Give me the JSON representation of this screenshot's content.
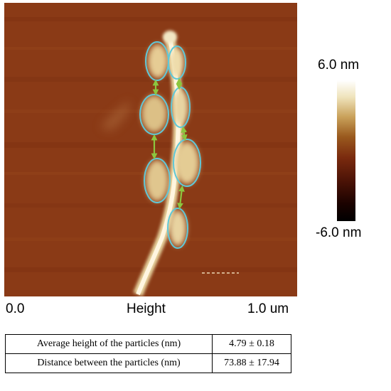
{
  "image": {
    "colorbar": {
      "max_label": "6.0 nm",
      "min_label": "-6.0 nm",
      "colors": [
        "#ffffff",
        "#efe3bb",
        "#c9a15a",
        "#9a5a1e",
        "#7a2a0e",
        "#4a1206",
        "#000000"
      ]
    },
    "axis": {
      "start_label": "0.0",
      "title": "Height",
      "end_label": "1.0 um"
    },
    "overlay_color": "#5fc8d8",
    "arrow_color": "#8cc63f"
  },
  "table": {
    "rows": [
      {
        "label": "Average height of the particles (nm)",
        "value": "4.79 ± 0.18"
      },
      {
        "label": "Distance between the particles (nm)",
        "value": "73.88 ± 17.94"
      }
    ]
  }
}
